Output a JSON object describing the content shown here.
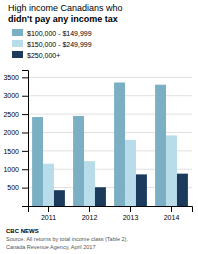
{
  "chart_data": {
    "type": "bar",
    "title": "High income Canadians who",
    "subtitle": "didn't pay any income tax",
    "categories": [
      "2011",
      "2012",
      "2013",
      "2014"
    ],
    "series": [
      {
        "name": "$100,000 - $149,999",
        "color": "#7aafc4",
        "values": [
          2420,
          2450,
          3360,
          3300
        ]
      },
      {
        "name": "$150,000 - $249,999",
        "color": "#b8dcea",
        "values": [
          1150,
          1220,
          1800,
          1920
        ]
      },
      {
        "name": "$250,000+",
        "color": "#1b3a5c",
        "values": [
          430,
          510,
          860,
          880
        ]
      }
    ],
    "ylim": [
      0,
      3700
    ],
    "yticks": [
      500,
      1000,
      1500,
      2000,
      2500,
      3000,
      3500
    ],
    "grid": true,
    "legend": "top-left",
    "annotations": [
      "CBC NEWS",
      "Source: All returns by total income class (Table 2),",
      "Canada Revenue Agency, April 2017"
    ]
  }
}
